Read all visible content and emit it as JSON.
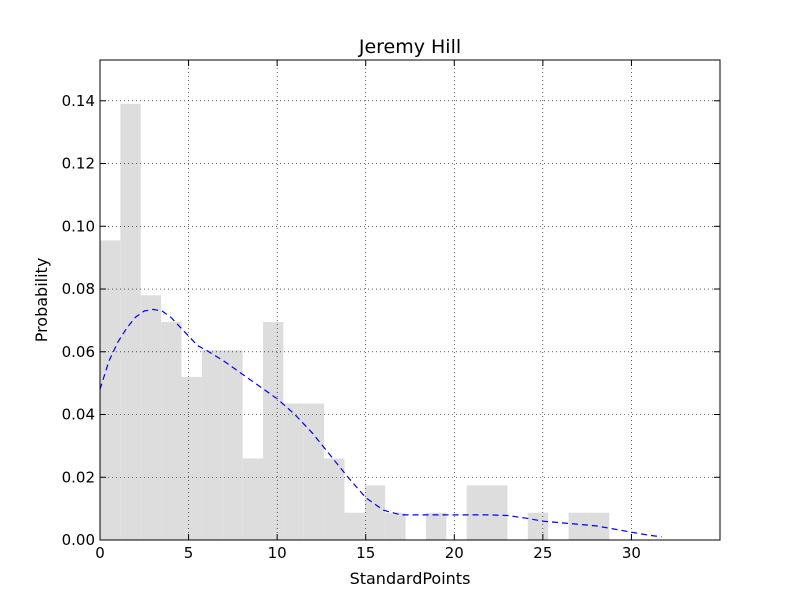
{
  "chart_data": {
    "type": "bar",
    "title": "Jeremy Hill",
    "xlabel": "StandardPoints",
    "ylabel": "Probability",
    "xlim": [
      0,
      35
    ],
    "ylim": [
      0,
      0.153
    ],
    "xticks": [
      "0",
      "5",
      "10",
      "15",
      "20",
      "25",
      "30"
    ],
    "yticks": [
      "0.00",
      "0.02",
      "0.04",
      "0.06",
      "0.08",
      "0.10",
      "0.12",
      "0.14"
    ],
    "grid": true,
    "bar_color": "#dddddd",
    "line_color": "#0000ff",
    "histogram": {
      "bins": [
        {
          "x0": 0.0,
          "x1": 1.15,
          "value": 0.0955
        },
        {
          "x0": 1.15,
          "x1": 2.3,
          "value": 0.139
        },
        {
          "x0": 2.3,
          "x1": 3.45,
          "value": 0.078
        },
        {
          "x0": 3.45,
          "x1": 4.6,
          "value": 0.0695
        },
        {
          "x0": 4.6,
          "x1": 5.75,
          "value": 0.052
        },
        {
          "x0": 5.75,
          "x1": 6.9,
          "value": 0.0605
        },
        {
          "x0": 6.9,
          "x1": 8.05,
          "value": 0.0605
        },
        {
          "x0": 8.05,
          "x1": 9.2,
          "value": 0.026
        },
        {
          "x0": 9.2,
          "x1": 10.35,
          "value": 0.0695
        },
        {
          "x0": 10.35,
          "x1": 11.5,
          "value": 0.0435
        },
        {
          "x0": 11.5,
          "x1": 12.65,
          "value": 0.0435
        },
        {
          "x0": 12.65,
          "x1": 13.8,
          "value": 0.026
        },
        {
          "x0": 13.8,
          "x1": 14.95,
          "value": 0.0087
        },
        {
          "x0": 14.95,
          "x1": 16.1,
          "value": 0.0174
        },
        {
          "x0": 16.1,
          "x1": 17.25,
          "value": 0.0087
        },
        {
          "x0": 18.4,
          "x1": 19.55,
          "value": 0.0087
        },
        {
          "x0": 20.7,
          "x1": 21.85,
          "value": 0.0174
        },
        {
          "x0": 21.85,
          "x1": 23.0,
          "value": 0.0174
        },
        {
          "x0": 24.15,
          "x1": 25.3,
          "value": 0.0087
        },
        {
          "x0": 26.45,
          "x1": 27.6,
          "value": 0.0087
        },
        {
          "x0": 27.6,
          "x1": 28.75,
          "value": 0.0087
        }
      ]
    },
    "density": {
      "style": "dashed",
      "x": [
        0,
        0.5,
        1,
        1.5,
        2,
        2.5,
        3,
        3.5,
        4,
        4.5,
        5,
        5.5,
        6,
        7,
        8,
        9,
        10,
        11,
        12,
        13,
        14,
        15,
        16,
        17,
        18,
        19,
        20,
        21,
        22,
        23,
        24,
        25,
        26,
        27,
        28,
        29,
        30,
        31,
        31.7
      ],
      "y": [
        0.048,
        0.057,
        0.063,
        0.0675,
        0.071,
        0.073,
        0.0735,
        0.073,
        0.071,
        0.068,
        0.065,
        0.062,
        0.0605,
        0.057,
        0.053,
        0.049,
        0.045,
        0.04,
        0.034,
        0.027,
        0.02,
        0.0135,
        0.0095,
        0.008,
        0.008,
        0.008,
        0.008,
        0.008,
        0.008,
        0.0078,
        0.007,
        0.006,
        0.0055,
        0.005,
        0.0045,
        0.0035,
        0.0025,
        0.0015,
        0.001
      ]
    }
  }
}
